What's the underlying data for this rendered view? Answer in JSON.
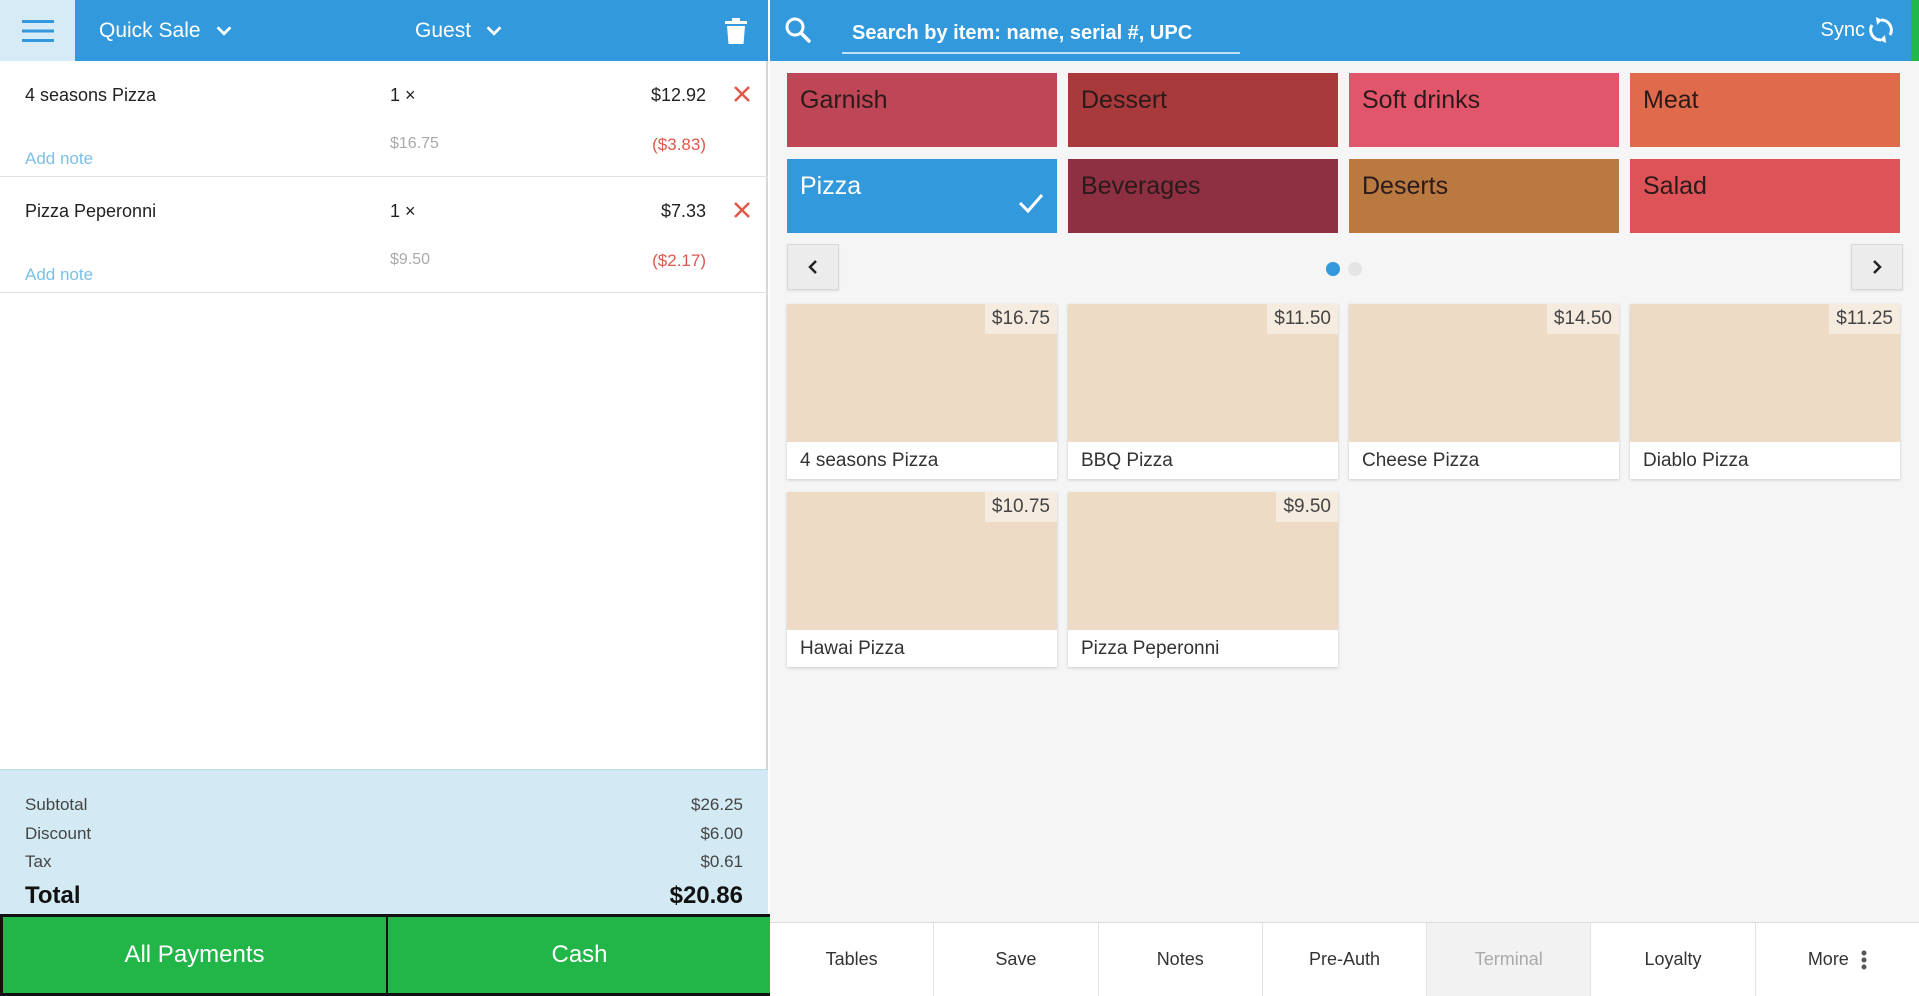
{
  "left": {
    "order_type": "Quick Sale",
    "customer": "Guest",
    "items": [
      {
        "name": "4 seasons Pizza",
        "qty": "1 ×",
        "price": "$12.92",
        "add_note": "Add note",
        "original_price": "$16.75",
        "discount": "($3.83)"
      },
      {
        "name": "Pizza Peperonni",
        "qty": "1 ×",
        "price": "$7.33",
        "add_note": "Add note",
        "original_price": "$9.50",
        "discount": "($2.17)"
      }
    ],
    "totals": {
      "subtotal_label": "Subtotal",
      "subtotal": "$26.25",
      "discount_label": "Discount",
      "discount": "$6.00",
      "tax_label": "Tax",
      "tax": "$0.61",
      "total_label": "Total",
      "total": "$20.86"
    },
    "payments": {
      "all_payments": "All Payments",
      "cash": "Cash"
    }
  },
  "right": {
    "search": {
      "placeholder": "Search by item: name, serial #, UPC"
    },
    "sync_label": "Sync",
    "categories": [
      {
        "label": "Garnish",
        "color": "#bf4656"
      },
      {
        "label": "Dessert",
        "color": "#a83a3c"
      },
      {
        "label": "Soft drinks",
        "color": "#e1566b"
      },
      {
        "label": "Meat",
        "color": "#df6a4c"
      },
      {
        "label": "Pizza",
        "color": "#3299dc",
        "selected": true
      },
      {
        "label": "Beverages",
        "color": "#8f3042"
      },
      {
        "label": "Deserts",
        "color": "#b97941"
      },
      {
        "label": "Salad",
        "color": "#de5358"
      }
    ],
    "pager": {
      "pages": 2,
      "current": 1
    },
    "products": [
      {
        "name": "4 seasons Pizza",
        "price": "$16.75"
      },
      {
        "name": "BBQ Pizza",
        "price": "$11.50"
      },
      {
        "name": "Cheese Pizza",
        "price": "$14.50"
      },
      {
        "name": "Diablo Pizza",
        "price": "$11.25"
      },
      {
        "name": "Hawai Pizza",
        "price": "$10.75"
      },
      {
        "name": "Pizza Peperonni",
        "price": "$9.50"
      }
    ],
    "bottom_bar": [
      "Tables",
      "Save",
      "Notes",
      "Pre-Auth",
      "Terminal",
      "Loyalty",
      "More"
    ],
    "disabled_buttons": [
      "Terminal"
    ]
  },
  "colors": {
    "header_blue": "#3299dc",
    "pay_green": "#22b548",
    "discount_red": "#e0574b",
    "note_blue": "#7cbfe6",
    "totals_bg": "#d3eaf5",
    "product_bg": "#eedbc5"
  }
}
